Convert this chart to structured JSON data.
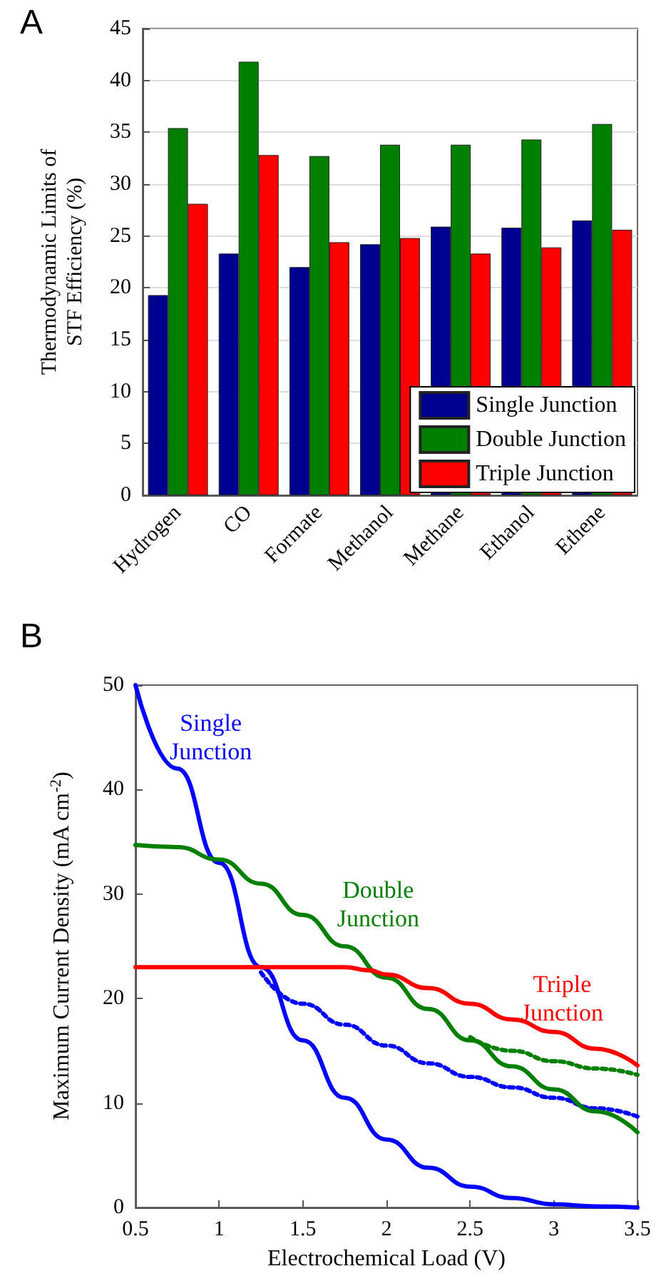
{
  "chart_data": [
    {
      "type": "bar",
      "annotations": [
        "A"
      ],
      "ylabel": "Thermodynamic Limits of STF Efficiency (%)",
      "categories": [
        "Hydrogen",
        "CO",
        "Formate",
        "Methanol",
        "Methane",
        "Ethanol",
        "Ethene"
      ],
      "series": [
        {
          "name": "Single Junction",
          "color": "#000090",
          "values": [
            19.3,
            23.3,
            22.0,
            24.2,
            25.9,
            25.8,
            26.5
          ]
        },
        {
          "name": "Double Junction",
          "color": "#007f00",
          "values": [
            35.4,
            41.8,
            32.7,
            33.8,
            33.8,
            34.3,
            35.8
          ]
        },
        {
          "name": "Triple Junction",
          "color": "#ff0000",
          "values": [
            28.1,
            32.8,
            24.4,
            24.8,
            23.3,
            23.9,
            25.6
          ]
        }
      ],
      "ylim": [
        0,
        45
      ],
      "yticks": [
        0,
        5,
        10,
        15,
        20,
        25,
        30,
        35,
        40,
        45
      ],
      "grid": "y",
      "legend": "bottom right"
    },
    {
      "type": "line",
      "annotations": [
        "B"
      ],
      "xlabel": "Electrochemical Load (V)",
      "ylabel": "Maximum Current Density (mA cm$^{-2}$)",
      "series": [
        {
          "name": "Single Junction",
          "color": "#0000ff",
          "x": [
            0.5,
            0.75,
            1.0,
            1.25,
            1.5,
            1.75,
            2.0,
            2.25,
            2.5,
            2.75,
            3.0,
            3.25,
            3.5
          ],
          "values": [
            50,
            42,
            33,
            23,
            16,
            10.5,
            6.5,
            3.8,
            2,
            0.9,
            0.3,
            0.1,
            0
          ]
        },
        {
          "name": "Double Junction",
          "color": "#007f00",
          "x": [
            0.5,
            0.75,
            1.0,
            1.25,
            1.5,
            1.75,
            2.0,
            2.25,
            2.5,
            2.75,
            3.0,
            3.25,
            3.5
          ],
          "values": [
            34.7,
            34.5,
            33.3,
            31,
            28,
            25,
            22,
            19,
            16,
            13.5,
            11.3,
            9.2,
            7.2
          ]
        },
        {
          "name": "Triple Junction",
          "color": "#ff0000",
          "x": [
            0.5,
            1.0,
            1.5,
            1.75,
            1.9,
            2.0,
            2.25,
            2.5,
            2.75,
            3.0,
            3.25,
            3.5
          ],
          "values": [
            23,
            23,
            23,
            23,
            22.7,
            22.3,
            21,
            19.5,
            18,
            16.8,
            15.2,
            13.6
          ]
        },
        {
          "color": "#0000ff",
          "line_style": "dotted",
          "x": [
            1.25,
            1.5,
            1.75,
            2.0,
            2.25,
            2.5,
            2.75,
            3.0,
            3.25,
            3.5
          ],
          "values": [
            22.5,
            19.5,
            17.5,
            15.5,
            13.8,
            12.5,
            11.5,
            10.5,
            9.5,
            8.7
          ]
        },
        {
          "color": "#007f00",
          "line_style": "dotted",
          "x": [
            2.5,
            2.75,
            3.0,
            3.25,
            3.5
          ],
          "values": [
            16.3,
            15,
            14,
            13.3,
            12.7
          ]
        }
      ],
      "xlim": [
        0.5,
        3.5
      ],
      "xticks": [
        0.5,
        1,
        1.5,
        2,
        2.5,
        3,
        3.5
      ],
      "ylim": [
        0,
        50
      ],
      "yticks": [
        0,
        10,
        20,
        30,
        40,
        50
      ],
      "grid": false,
      "legend": false,
      "line_style": "solid",
      "marker": "none"
    }
  ]
}
